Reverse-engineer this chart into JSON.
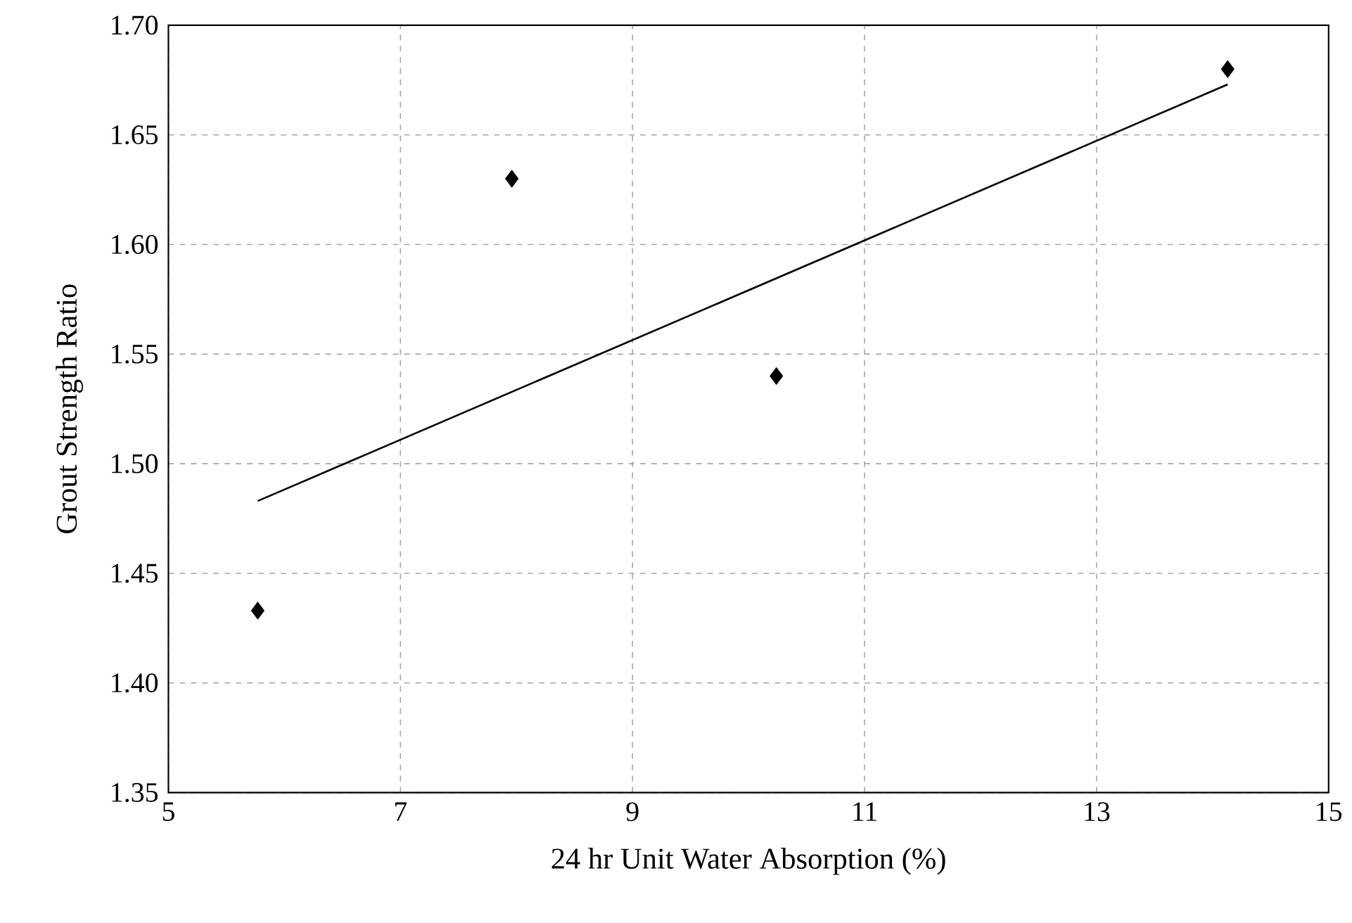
{
  "chart_data": {
    "type": "scatter",
    "xlabel": "24 hr Unit Water Absorption (%)",
    "ylabel": "Grout Strength Ratio",
    "xlim": [
      5,
      15
    ],
    "xticks": [
      5,
      7,
      9,
      11,
      13,
      15
    ],
    "ylim": [
      1.35,
      1.7
    ],
    "yticks": [
      {
        "value": 1.35,
        "label": "1.35"
      },
      {
        "value": 1.4,
        "label": "1.40"
      },
      {
        "value": 1.45,
        "label": "1.45"
      },
      {
        "value": 1.5,
        "label": "1.50"
      },
      {
        "value": 1.55,
        "label": "1.55"
      },
      {
        "value": 1.6,
        "label": "1.60"
      },
      {
        "value": 1.65,
        "label": "1.65"
      },
      {
        "value": 1.7,
        "label": "1.70"
      }
    ],
    "grid": true,
    "marker": "diamond",
    "series": [
      {
        "color": "#000000",
        "x": [
          5.77,
          7.96,
          10.24,
          14.13
        ],
        "values": [
          1.433,
          1.63,
          1.54,
          1.68
        ]
      },
      {
        "type": "line",
        "color": "#000000",
        "marker": "none",
        "x": [
          5.77,
          14.13
        ],
        "values": [
          1.483,
          1.673
        ]
      }
    ]
  }
}
